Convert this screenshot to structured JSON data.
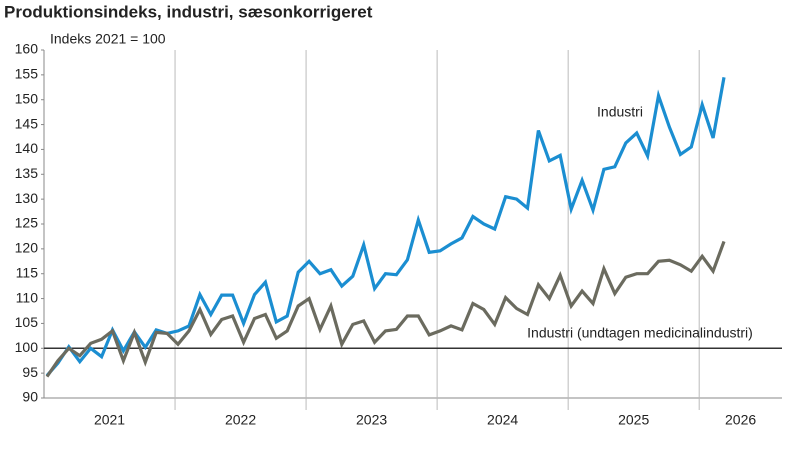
{
  "chart_data": {
    "type": "line",
    "title": "Produktionsindeks, industri, sæsonkorrigeret",
    "subtitle": "Indeks 2021 = 100",
    "categories": [
      null,
      null,
      null,
      null,
      null,
      null,
      null,
      null,
      null,
      null,
      null,
      null,
      null,
      null,
      null,
      null,
      null,
      null,
      null,
      null,
      null,
      null,
      null,
      null,
      null,
      null,
      null,
      null,
      null,
      null,
      null,
      null,
      null,
      null,
      null,
      null,
      null,
      null,
      null,
      null,
      null,
      null,
      null,
      null,
      null,
      null,
      null,
      null,
      null,
      null,
      null,
      null,
      null,
      null,
      null,
      null,
      null,
      null,
      null,
      null,
      null,
      null,
      null
    ],
    "x_groups": [
      2021,
      2022,
      2023,
      2024,
      2025,
      2026
    ],
    "series": [
      {
        "name": "Industri",
        "color": "#1b8ed1",
        "values": [
          94.5,
          97,
          100.3,
          97.3,
          100,
          98.3,
          103.7,
          99.5,
          103.3,
          100.2,
          103.7,
          103,
          103.5,
          104.5,
          110.8,
          106.8,
          110.7,
          110.7,
          105,
          110.8,
          113.3,
          105.3,
          106.5,
          115.3,
          117.5,
          115,
          115.8,
          112.5,
          114.5,
          120.8,
          112,
          115,
          114.8,
          117.8,
          125.8,
          119.3,
          119.6,
          121,
          122.2,
          126.5,
          125,
          124,
          130.5,
          130,
          128.2,
          143.8,
          137.7,
          138.8,
          128,
          133.8,
          127.8,
          136,
          136.5,
          141.3,
          143.3,
          138.7,
          150.8,
          144.5,
          139,
          140.5,
          149,
          142.3,
          154.5
        ]
      },
      {
        "name": "Industri (undtagen medicinalindustri)",
        "color": "#6b6b5f",
        "values": [
          94.3,
          97.5,
          100,
          98.5,
          101,
          101.8,
          103.5,
          97.5,
          103.2,
          97.2,
          103.2,
          103,
          100.8,
          103.5,
          107.8,
          102.8,
          105.8,
          106.5,
          101.2,
          106,
          106.8,
          102,
          103.5,
          108.5,
          110,
          103.8,
          108.5,
          100.8,
          104.8,
          105.5,
          101.2,
          103.5,
          103.8,
          106.5,
          106.5,
          102.7,
          103.5,
          104.5,
          103.7,
          109,
          107.8,
          104.8,
          110.2,
          108,
          106.8,
          112.8,
          110,
          114.7,
          108.5,
          111.5,
          109,
          116,
          111,
          114.3,
          115,
          115,
          117.5,
          117.7,
          116.8,
          115.5,
          118.5,
          115.5,
          121.5
        ]
      }
    ],
    "reference_line": 100,
    "ylim": [
      90,
      160
    ],
    "yticks": [
      90,
      95,
      100,
      105,
      110,
      115,
      120,
      125,
      130,
      135,
      140,
      145,
      150,
      155,
      160
    ]
  }
}
